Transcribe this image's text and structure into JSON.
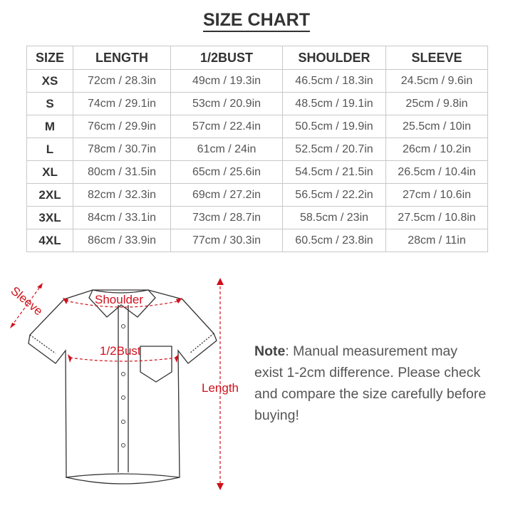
{
  "title": "SIZE CHART",
  "table": {
    "headers": [
      "SIZE",
      "LENGTH",
      "1/2BUST",
      "SHOULDER",
      "SLEEVE"
    ],
    "rows": [
      [
        "XS",
        "72cm / 28.3in",
        "49cm / 19.3in",
        "46.5cm / 18.3in",
        "24.5cm / 9.6in"
      ],
      [
        "S",
        "74cm / 29.1in",
        "53cm / 20.9in",
        "48.5cm / 19.1in",
        "25cm / 9.8in"
      ],
      [
        "M",
        "76cm / 29.9in",
        "57cm / 22.4in",
        "50.5cm / 19.9in",
        "25.5cm / 10in"
      ],
      [
        "L",
        "78cm / 30.7in",
        "61cm / 24in",
        "52.5cm / 20.7in",
        "26cm / 10.2in"
      ],
      [
        "XL",
        "80cm / 31.5in",
        "65cm / 25.6in",
        "54.5cm / 21.5in",
        "26.5cm / 10.4in"
      ],
      [
        "2XL",
        "82cm / 32.3in",
        "69cm / 27.2in",
        "56.5cm / 22.2in",
        "27cm / 10.6in"
      ],
      [
        "3XL",
        "84cm / 33.1in",
        "73cm / 28.7in",
        "58.5cm / 23in",
        "27.5cm / 10.8in"
      ],
      [
        "4XL",
        "86cm / 33.9in",
        "77cm / 30.3in",
        "60.5cm / 23.8in",
        "28cm / 11in"
      ]
    ]
  },
  "diagram": {
    "labels": {
      "sleeve": "Sleeve",
      "shoulder": "Shoulder",
      "bust": "1/2Bust",
      "length": "Length"
    },
    "accent_color": "#d0101c"
  },
  "note": {
    "label": "Note",
    "text": ": Manual measurement may exist 1-2cm difference. Please check and compare the size carefully before buying!"
  }
}
